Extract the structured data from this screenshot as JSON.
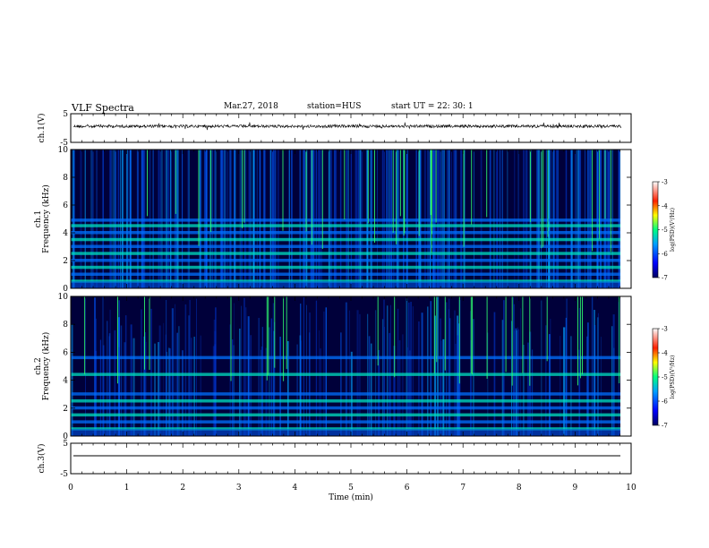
{
  "header": {
    "title": "VLF Spectra",
    "date": "Mar.27, 2018",
    "station": "station=HUS",
    "start_ut": "start  UT  =   22: 30: 1"
  },
  "chart_data": [
    {
      "type": "line",
      "name": "ch1-waveform",
      "ylabel": "ch.1(V)",
      "ylim": [
        -5,
        5
      ],
      "yticks": [
        "5",
        "-5"
      ],
      "xlim": [
        0,
        10
      ],
      "baseline": 0
    },
    {
      "type": "heatmap",
      "name": "ch1-spectrogram",
      "ylabel": "ch.1\nFrequency (kHz)",
      "ylim": [
        0,
        10
      ],
      "yticks": [
        "0",
        "2",
        "4",
        "6",
        "8",
        "10"
      ],
      "xlim": [
        0,
        10
      ],
      "colorbar": {
        "label": "log(PSD)(V²/Hz)",
        "range": [
          -7,
          -3
        ],
        "ticks": [
          "-3",
          "-4",
          "-5",
          "-6",
          "-7"
        ]
      },
      "bands_khz": [
        0.5,
        1.0,
        1.5,
        2.0,
        2.5,
        3.0,
        3.5,
        4.0,
        4.5,
        4.9
      ]
    },
    {
      "type": "heatmap",
      "name": "ch2-spectrogram",
      "ylabel": "ch.2\nFrequency (kHz)",
      "ylim": [
        0,
        10
      ],
      "yticks": [
        "0",
        "2",
        "4",
        "6",
        "8",
        "10"
      ],
      "xlim": [
        0,
        10
      ],
      "colorbar": {
        "label": "log(PSD)(V²/Hz)",
        "range": [
          -7,
          -3
        ],
        "ticks": [
          "-3",
          "-4",
          "-5",
          "-6",
          "-7"
        ]
      },
      "bands_khz": [
        0.5,
        1.0,
        1.5,
        2.0,
        2.5,
        3.0,
        4.4,
        5.6
      ]
    },
    {
      "type": "line",
      "name": "ch3-waveform",
      "ylabel": "ch.3(V)",
      "ylim": [
        -5,
        5
      ],
      "yticks": [
        "5",
        "-5"
      ],
      "xlim": [
        0,
        10
      ],
      "baseline": 0,
      "xlabel": "Time  (min)",
      "xticks": [
        "0",
        "1",
        "2",
        "3",
        "4",
        "5",
        "6",
        "7",
        "8",
        "9",
        "10"
      ]
    }
  ],
  "colors": {
    "background": "#00003a",
    "axis": "#000000",
    "colormap": [
      "#000060",
      "#0000ff",
      "#0080ff",
      "#00ffff",
      "#00ff60",
      "#ffff00",
      "#ff6000",
      "#ff0000",
      "#ffffff"
    ]
  }
}
